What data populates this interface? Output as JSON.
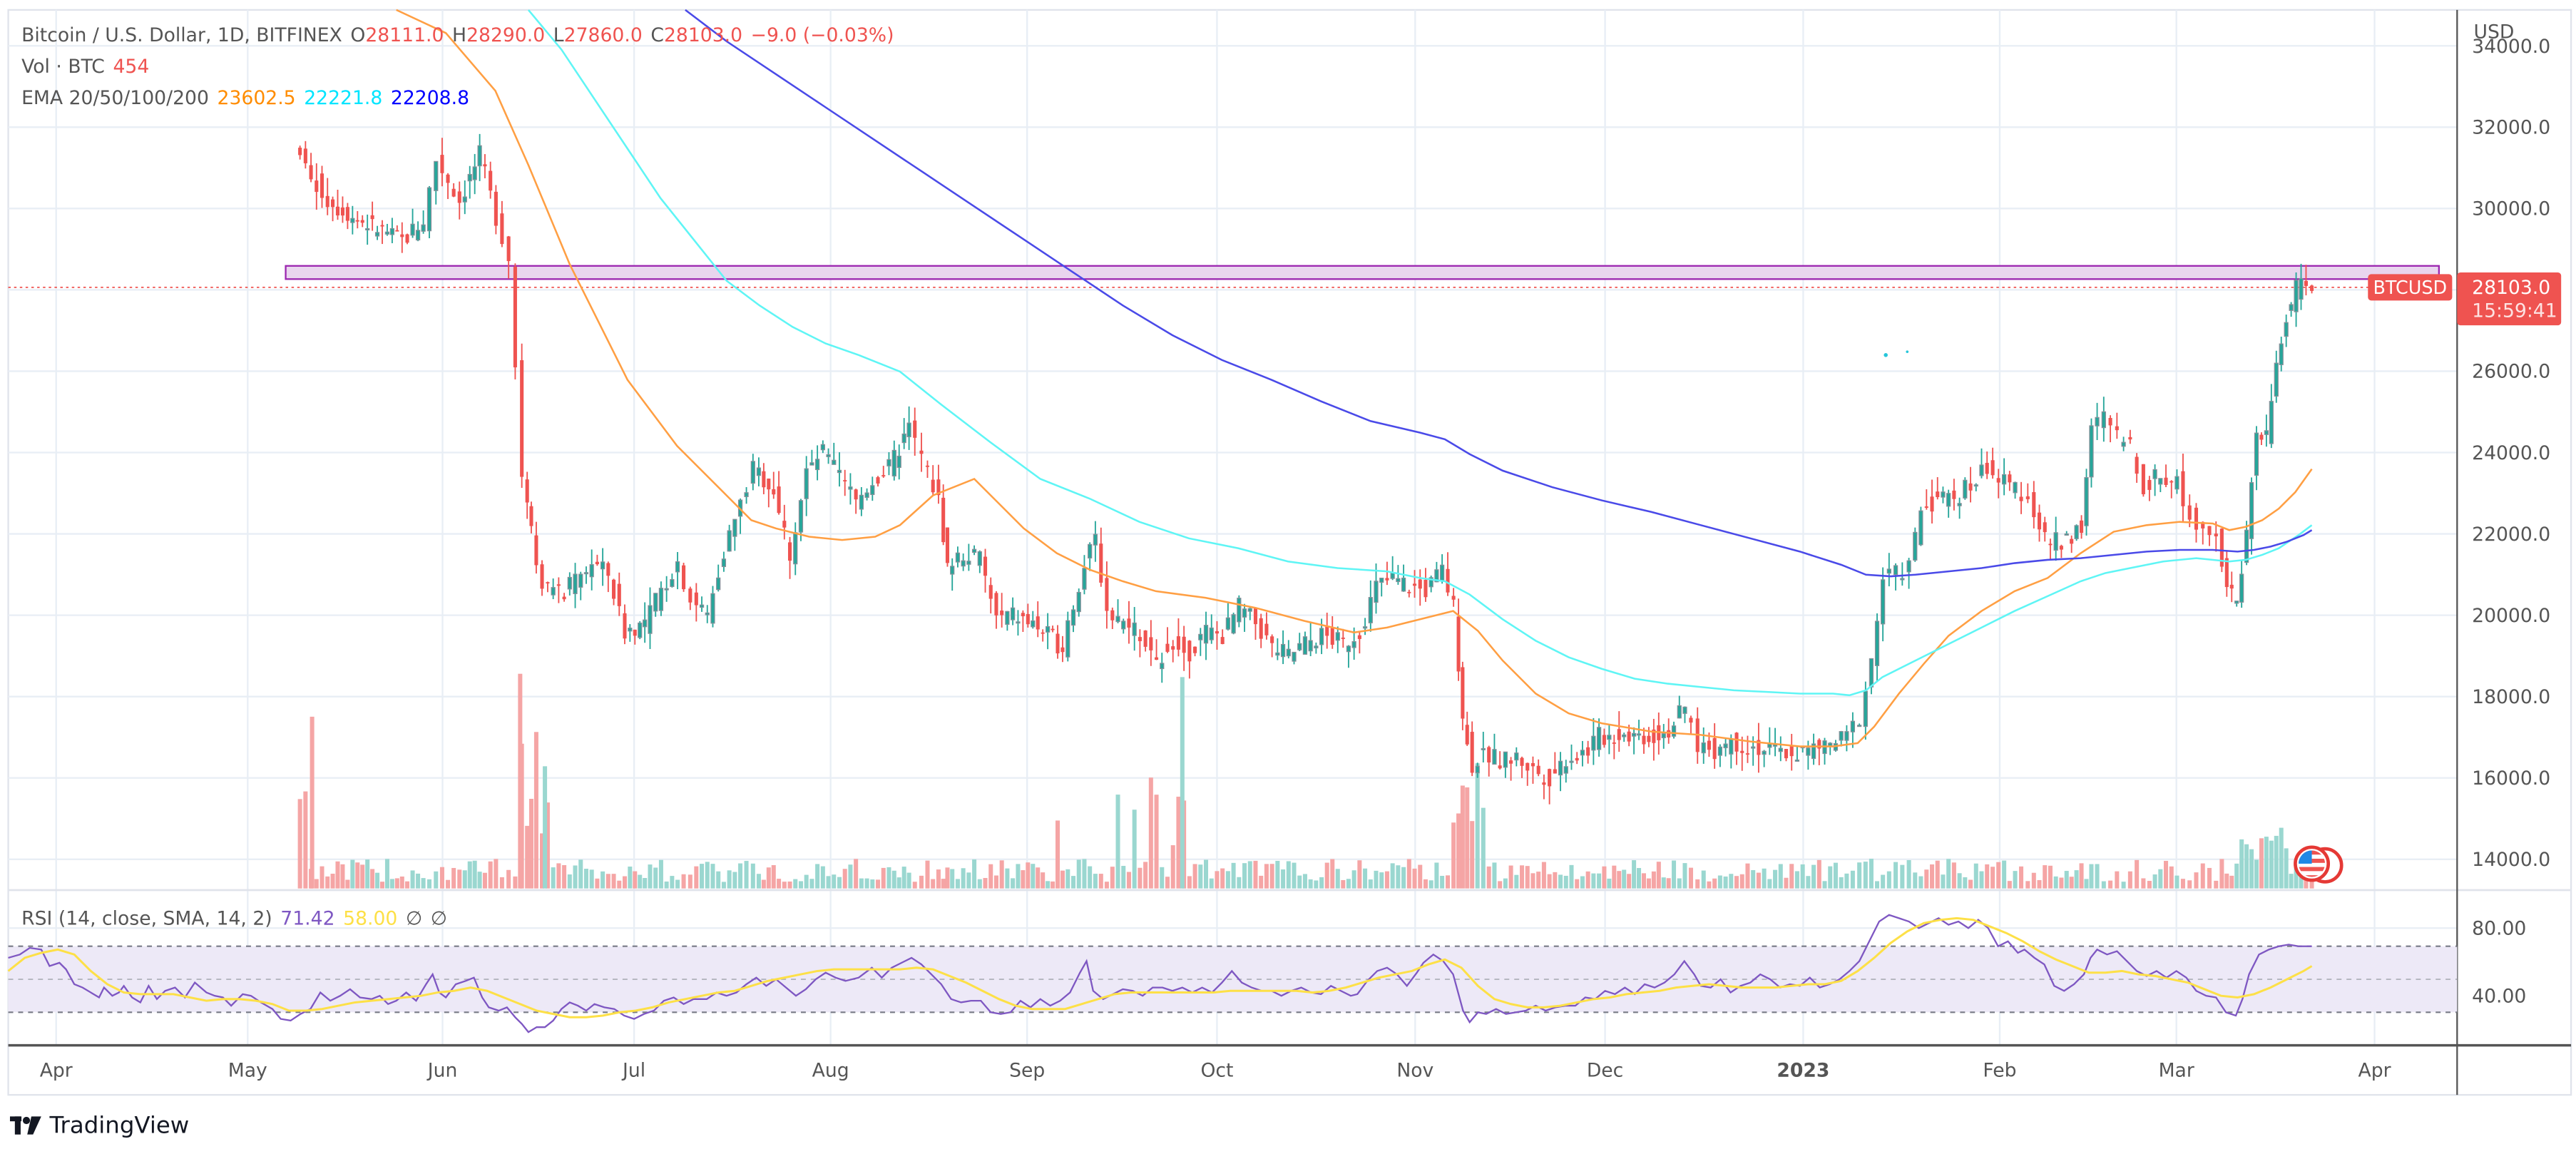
{
  "header": {
    "symbol_title": "Bitcoin / U.S. Dollar, 1D, BITFINEX",
    "ohlc": {
      "open_label": "O",
      "open": "28111.0",
      "high_label": "H",
      "high": "28290.0",
      "low_label": "L",
      "low": "27860.0",
      "close_label": "C",
      "close": "28103.0",
      "change": "−9.0 (−0.03%)"
    },
    "volume": {
      "label": "Vol · BTC",
      "value": "454"
    },
    "ema": {
      "label": "EMA 20/50/100/200",
      "values": [
        "23602.5",
        "22221.8",
        "22208.8"
      ],
      "colors": [
        "#ff8c00",
        "#00e5ff",
        "#0000ff"
      ]
    }
  },
  "rsi": {
    "label": "RSI (14, close, SMA, 14, 2)",
    "value": "71.42",
    "sma_value": "58.00",
    "extra1": "∅",
    "extra2": "∅",
    "axis": [
      "80.00",
      "40.00"
    ]
  },
  "price_axis": {
    "currency": "USD",
    "ticks": [
      "34000.0",
      "32000.0",
      "30000.0",
      "28000.0",
      "26000.0",
      "24000.0",
      "22000.0",
      "20000.0",
      "18000.0",
      "16000.0",
      "14000.0"
    ],
    "last_price_tag": "28103.0",
    "countdown": "15:59:41",
    "symbol_tag": "BTCUSD"
  },
  "time_axis": {
    "labels": [
      "Apr",
      "May",
      "Jun",
      "Jul",
      "Aug",
      "Sep",
      "Oct",
      "Nov",
      "Dec",
      "2023",
      "Feb",
      "Mar",
      "Apr"
    ]
  },
  "branding": {
    "logo_text": "TradingView"
  },
  "colors": {
    "up": "#26a69a",
    "down": "#ef5350",
    "ema20": "#ff9f43",
    "ema50": "#5ff5f5",
    "ema100": "#4a4ae8",
    "rsi": "#7e57c2",
    "rsi_sma": "#fde047",
    "zone": "#9c27b0",
    "zone_fill": "#e9d5ee"
  },
  "chart_data": [
    {
      "type": "candlestick",
      "title": "Bitcoin / U.S. Dollar, 1D, BITFINEX",
      "xlabel": "",
      "ylabel": "USD",
      "ylim": [
        13500,
        34500
      ],
      "x_range": [
        "2022-03-25",
        "2023-03-23"
      ],
      "last": {
        "open": 28111.0,
        "high": 28290.0,
        "low": 27860.0,
        "close": 28103.0,
        "change": -9.0,
        "change_pct": -0.03
      },
      "monthly_approx_close": {
        "categories": [
          "2022-05-10",
          "2022-06-01",
          "2022-06-15",
          "2022-07-01",
          "2022-08-01",
          "2022-08-15",
          "2022-09-01",
          "2022-09-15",
          "2022-10-01",
          "2022-11-05",
          "2022-11-10",
          "2022-12-01",
          "2023-01-01",
          "2023-01-20",
          "2023-02-01",
          "2023-02-20",
          "2023-03-10",
          "2023-03-20"
        ],
        "values": [
          31000,
          31500,
          22000,
          19200,
          23300,
          24200,
          20000,
          20200,
          19300,
          21200,
          16500,
          17000,
          16600,
          22700,
          23500,
          24500,
          20300,
          28100
        ]
      },
      "resistance_zone": {
        "low": 28200,
        "high": 28600,
        "color": "#9c27b0"
      },
      "series": [
        {
          "name": "EMA 20",
          "color": "#ff9f43",
          "last": 23602.5
        },
        {
          "name": "EMA 50",
          "color": "#5ff5f5",
          "last": 22221.8
        },
        {
          "name": "EMA 100/200",
          "color": "#4a4ae8",
          "last": 22208.8
        }
      ],
      "grid": true,
      "legend_position": "top-left"
    },
    {
      "type": "line",
      "title": "RSI (14, close, SMA, 14, 2)",
      "ylim": [
        20,
        95
      ],
      "bands": {
        "upper": 70,
        "middle": 50,
        "lower": 30
      },
      "series": [
        {
          "name": "RSI",
          "color": "#7e57c2",
          "last": 71.42
        },
        {
          "name": "RSI SMA",
          "color": "#fde047",
          "last": 58.0
        }
      ]
    }
  ]
}
